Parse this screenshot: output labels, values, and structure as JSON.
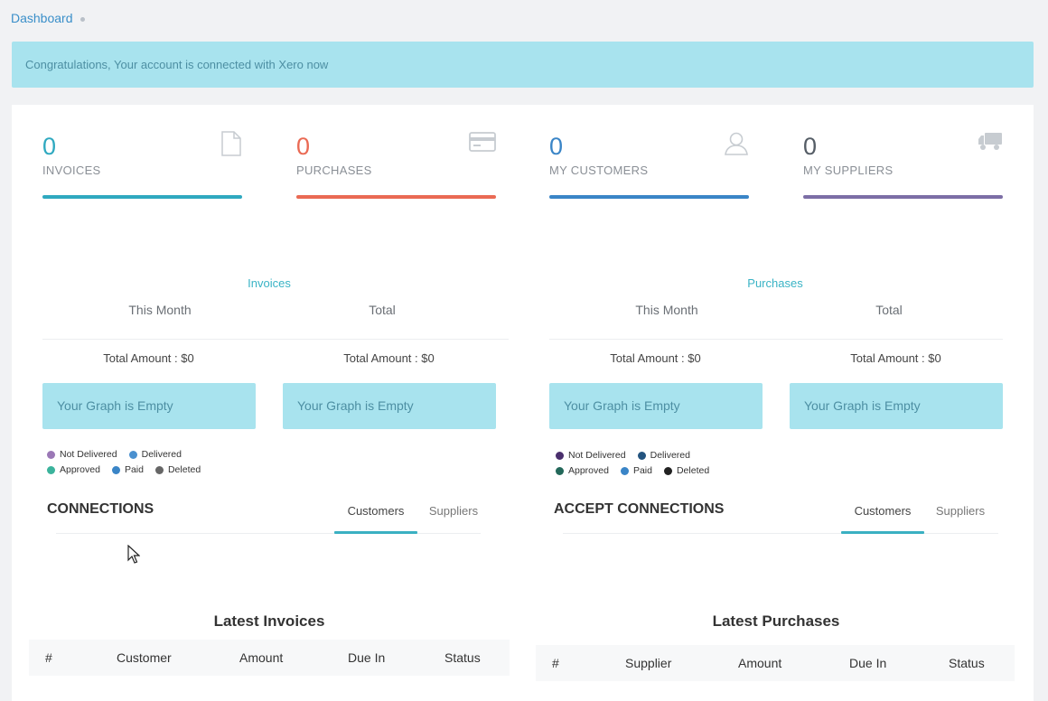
{
  "breadcrumb": {
    "label": "Dashboard"
  },
  "alert": {
    "text": "Congratulations, Your account is connected with Xero now"
  },
  "stats": [
    {
      "value": "0",
      "label": "INVOICES",
      "icon": "file-icon",
      "color": "#2fa9c0"
    },
    {
      "value": "0",
      "label": "PURCHASES",
      "icon": "credit-card-icon",
      "color": "#ea6a54"
    },
    {
      "value": "0",
      "label": "MY CUSTOMERS",
      "icon": "user-icon",
      "color": "#3a85c7"
    },
    {
      "value": "0",
      "label": "MY SUPPLIERS",
      "icon": "truck-icon",
      "color": "#7c6ea6"
    }
  ],
  "invoices_section": {
    "title": "Invoices",
    "this_month": "This Month",
    "total": "Total",
    "amount_month": "Total Amount : $0",
    "amount_total": "Total Amount : $0",
    "graph_month": "Your Graph is Empty",
    "graph_total": "Your Graph is Empty",
    "legend": [
      {
        "label": "Not Delivered",
        "color": "#9b78b6"
      },
      {
        "label": "Delivered",
        "color": "#4a90cf"
      },
      {
        "label": "Approved",
        "color": "#3bb39c"
      },
      {
        "label": "Paid",
        "color": "#3a85c7"
      },
      {
        "label": "Deleted",
        "color": "#666666"
      }
    ]
  },
  "purchases_section": {
    "title": "Purchases",
    "this_month": "This Month",
    "total": "Total",
    "amount_month": "Total Amount : $0",
    "amount_total": "Total Amount : $0",
    "graph_month": "Your Graph is Empty",
    "graph_total": "Your Graph is Empty",
    "legend": [
      {
        "label": "Not Delivered",
        "color": "#4a2f6d"
      },
      {
        "label": "Delivered",
        "color": "#24547f"
      },
      {
        "label": "Approved",
        "color": "#23685a"
      },
      {
        "label": "Paid",
        "color": "#3a85c7"
      },
      {
        "label": "Deleted",
        "color": "#222222"
      }
    ]
  },
  "connections": {
    "title": "CONNECTIONS",
    "tabs": [
      "Customers",
      "Suppliers"
    ]
  },
  "accept_connections": {
    "title": "ACCEPT CONNECTIONS",
    "tabs": [
      "Customers",
      "Suppliers"
    ]
  },
  "latest_invoices": {
    "title": "Latest Invoices",
    "columns": [
      "#",
      "Customer",
      "Amount",
      "Due In",
      "Status"
    ]
  },
  "latest_purchases": {
    "title": "Latest Purchases",
    "columns": [
      "#",
      "Supplier",
      "Amount",
      "Due In",
      "Status"
    ]
  }
}
